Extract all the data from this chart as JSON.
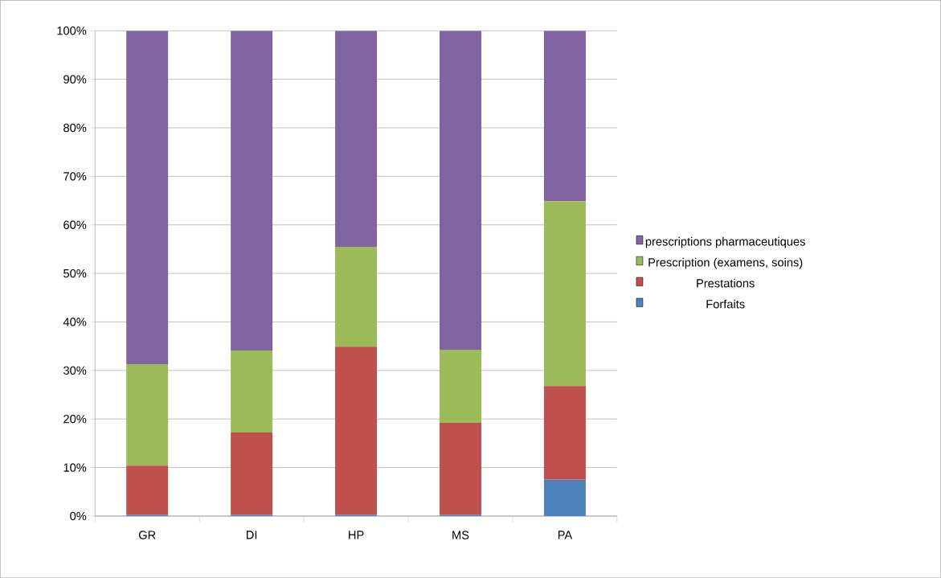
{
  "chart_data": {
    "type": "bar",
    "stacked": true,
    "categories": [
      "GR",
      "DI",
      "HP",
      "MS",
      "PA"
    ],
    "series": [
      {
        "name": "Forfaits",
        "color": "#4f81bd",
        "values": [
          0.3,
          0.3,
          0.3,
          0.3,
          7.5
        ]
      },
      {
        "name": "Prestations",
        "color": "#c0504d",
        "values": [
          10.1,
          16.9,
          34.6,
          18.9,
          19.3
        ]
      },
      {
        "name": "Prescription (examens, soins)",
        "color": "#9bbb59",
        "values": [
          20.9,
          16.9,
          20.6,
          15.1,
          38.1
        ]
      },
      {
        "name": "prescriptions pharmaceutiques",
        "color": "#8064a2",
        "values": [
          68.7,
          65.9,
          44.5,
          65.7,
          35.1
        ]
      }
    ],
    "ylim": [
      0,
      100
    ],
    "yticks": [
      {
        "value": 0,
        "label": "0%"
      },
      {
        "value": 10,
        "label": "10%"
      },
      {
        "value": 20,
        "label": "20%"
      },
      {
        "value": 30,
        "label": "30%"
      },
      {
        "value": 40,
        "label": "40%"
      },
      {
        "value": 50,
        "label": "50%"
      },
      {
        "value": 60,
        "label": "60%"
      },
      {
        "value": 70,
        "label": "70%"
      },
      {
        "value": 80,
        "label": "80%"
      },
      {
        "value": 90,
        "label": "90%"
      },
      {
        "value": 100,
        "label": "100%"
      }
    ],
    "grid": "y",
    "legend": "right"
  }
}
